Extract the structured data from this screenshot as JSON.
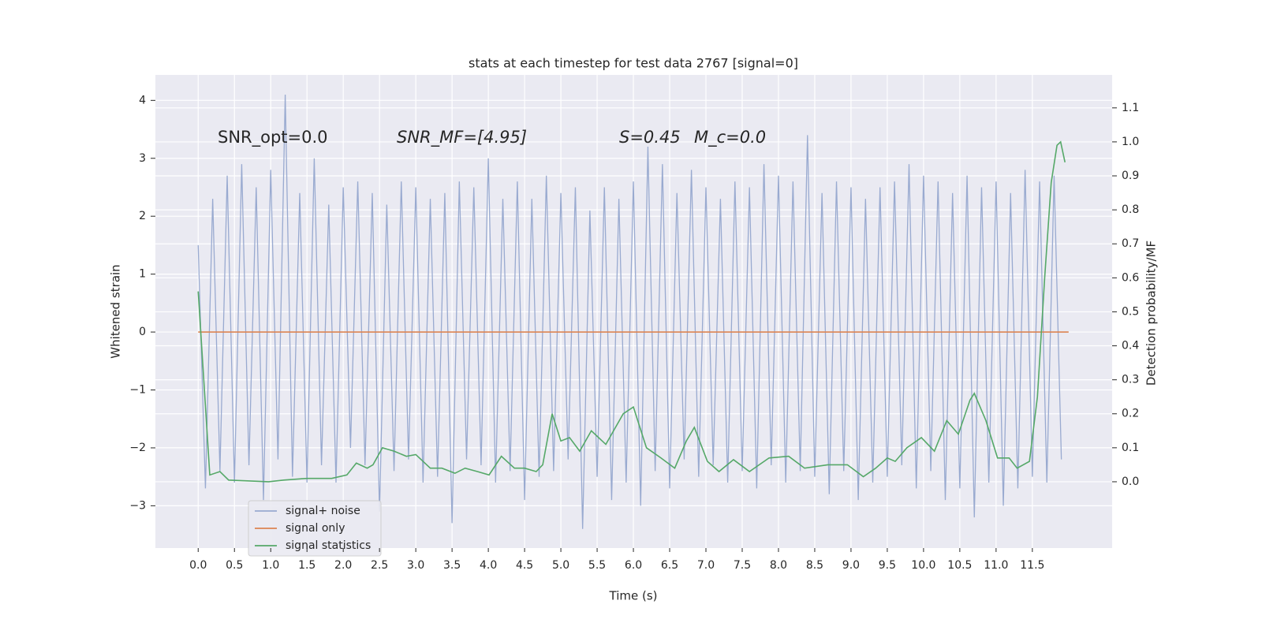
{
  "chart_data": {
    "type": "line",
    "title": "stats at each timestep for test data 2767 [signal=0]",
    "xlabel": "Time (s)",
    "ylabel": "Whitened strain",
    "y2label": "Detection probability/MF",
    "annotations": [
      "SNR_opt=0.0",
      "SNR_MF=[4.95]",
      "S=0.45",
      "M_c=0.0"
    ],
    "xlim": [
      -0.59,
      12.6
    ],
    "ylim": [
      -3.73,
      4.44
    ],
    "y2lim": [
      -0.195,
      1.197
    ],
    "xticks": [
      {
        "value": 0,
        "label": "0.0"
      },
      0.5,
      {
        "value": 1,
        "label": "1.0"
      },
      1.5,
      {
        "value": 2,
        "label": "2.0"
      },
      2.5,
      {
        "value": 3,
        "label": "3.0"
      },
      3.5,
      {
        "value": 4,
        "label": "4.0"
      },
      4.5,
      {
        "value": 5,
        "label": "5.0"
      },
      5.5,
      {
        "value": 6,
        "label": "6.0"
      },
      6.5,
      {
        "value": 7,
        "label": "7.0"
      },
      7.5,
      {
        "value": 8,
        "label": "8.0"
      },
      8.5,
      {
        "value": 9,
        "label": "9.0"
      },
      9.5,
      {
        "value": 10,
        "label": "10.0"
      },
      10.5,
      {
        "value": 11,
        "label": "11.0"
      },
      11.5
    ],
    "yticks": [
      {
        "value": -3,
        "label": "−3"
      },
      {
        "value": -2,
        "label": "−2"
      },
      {
        "value": -1,
        "label": "−1"
      },
      0,
      1,
      2,
      3,
      4
    ],
    "y2ticks": [
      {
        "value": 0,
        "label": "0.0"
      },
      0.1,
      0.2,
      0.3,
      0.4,
      0.5,
      0.6,
      0.7,
      0.8,
      0.9,
      {
        "value": 1,
        "label": "1.0"
      },
      1.1
    ],
    "grid": true,
    "legend_loc": "lower left",
    "series": [
      {
        "name": "signal+ noise",
        "color": "#99aad0",
        "x": [
          0,
          0.1,
          0.2,
          0.3,
          0.4,
          0.5,
          0.6,
          0.7,
          0.8,
          0.9,
          1,
          1.1,
          1.2,
          1.3,
          1.4,
          1.5,
          1.6,
          1.7,
          1.8,
          1.9,
          2,
          2.1,
          2.2,
          2.3,
          2.4,
          2.5,
          2.6,
          2.7,
          2.8,
          2.9,
          3,
          3.1,
          3.2,
          3.3,
          3.4,
          3.5,
          3.6,
          3.7,
          3.8,
          3.9,
          4,
          4.1,
          4.2,
          4.3,
          4.4,
          4.5,
          4.6,
          4.7,
          4.8,
          4.9,
          5,
          5.1,
          5.2,
          5.3,
          5.4,
          5.5,
          5.6,
          5.7,
          5.8,
          5.9,
          6,
          6.1,
          6.2,
          6.3,
          6.4,
          6.5,
          6.6,
          6.7,
          6.8,
          6.9,
          7,
          7.1,
          7.2,
          7.3,
          7.4,
          7.5,
          7.6,
          7.7,
          7.8,
          7.9,
          8,
          8.1,
          8.2,
          8.3,
          8.4,
          8.5,
          8.6,
          8.7,
          8.8,
          8.9,
          9,
          9.1,
          9.2,
          9.3,
          9.4,
          9.5,
          9.6,
          9.7,
          9.8,
          9.9,
          10,
          10.1,
          10.2,
          10.3,
          10.4,
          10.5,
          10.6,
          10.7,
          10.8,
          10.9,
          11,
          11.1,
          11.2,
          11.3,
          11.4,
          11.5,
          11.6,
          11.7,
          11.8,
          11.9
        ],
        "values": [
          1.5,
          -2.7,
          2.3,
          -2.4,
          2.7,
          -2.6,
          2.9,
          -2.3,
          2.5,
          -2.9,
          2.8,
          -2.2,
          4.1,
          -2.5,
          2.4,
          -2.6,
          3.0,
          -2.3,
          2.2,
          -2.6,
          2.5,
          -2.0,
          2.6,
          -2.3,
          2.4,
          -3.1,
          2.2,
          -2.4,
          2.6,
          -2.2,
          2.5,
          -2.6,
          2.3,
          -2.5,
          2.4,
          -3.3,
          2.6,
          -2.2,
          2.5,
          -2.3,
          3.0,
          -2.6,
          2.3,
          -2.4,
          2.6,
          -2.9,
          2.3,
          -2.5,
          2.7,
          -2.4,
          2.4,
          -2.2,
          2.5,
          -3.4,
          2.1,
          -2.5,
          2.5,
          -2.9,
          2.3,
          -2.6,
          2.6,
          -3.0,
          3.2,
          -2.4,
          2.9,
          -2.7,
          2.4,
          -2.2,
          2.8,
          -2.5,
          2.5,
          -2.3,
          2.3,
          -2.6,
          2.6,
          -2.4,
          2.5,
          -2.7,
          2.9,
          -2.3,
          2.7,
          -2.6,
          2.6,
          -2.4,
          3.4,
          -2.5,
          2.4,
          -2.8,
          2.6,
          -2.4,
          2.5,
          -2.9,
          2.3,
          -2.6,
          2.5,
          -2.5,
          2.6,
          -2.3,
          2.9,
          -2.7,
          2.7,
          -2.4,
          2.6,
          -2.9,
          2.4,
          -2.7,
          2.7,
          -3.2,
          2.5,
          -2.6,
          2.6,
          -3.0,
          2.4,
          -2.7,
          2.8,
          -2.5,
          2.6,
          -2.6,
          2.7,
          -2.2
        ]
      },
      {
        "name": "signal only",
        "color": "#dd8452",
        "x": [
          0,
          12
        ],
        "values": [
          0,
          0
        ]
      },
      {
        "name": "signal statistics",
        "color": "#55a868",
        "axis": "y2",
        "x": [
          0,
          0.16,
          0.3,
          0.42,
          0.97,
          1.18,
          1.5,
          1.84,
          2.05,
          2.18,
          2.33,
          2.41,
          2.54,
          2.7,
          2.87,
          3.0,
          3.2,
          3.36,
          3.54,
          3.68,
          3.85,
          4.01,
          4.18,
          4.36,
          4.5,
          4.66,
          4.75,
          4.88,
          5.0,
          5.12,
          5.26,
          5.42,
          5.62,
          5.86,
          6.0,
          6.18,
          6.38,
          6.57,
          6.73,
          6.84,
          7.02,
          7.18,
          7.38,
          7.6,
          7.87,
          8.14,
          8.36,
          8.68,
          8.95,
          9.17,
          9.34,
          9.5,
          9.61,
          9.77,
          9.97,
          10.15,
          10.32,
          10.48,
          10.64,
          10.7,
          10.86,
          11.02,
          11.18,
          11.29,
          11.46,
          11.57,
          11.67,
          11.76,
          11.84,
          11.89,
          11.95
        ],
        "values": [
          0.56,
          0.02,
          0.03,
          0.005,
          0.0,
          0.005,
          0.01,
          0.01,
          0.02,
          0.055,
          0.04,
          0.05,
          0.1,
          0.09,
          0.075,
          0.08,
          0.04,
          0.04,
          0.025,
          0.04,
          0.03,
          0.02,
          0.075,
          0.04,
          0.04,
          0.03,
          0.05,
          0.2,
          0.12,
          0.13,
          0.09,
          0.15,
          0.11,
          0.2,
          0.22,
          0.1,
          0.07,
          0.04,
          0.12,
          0.16,
          0.06,
          0.03,
          0.065,
          0.03,
          0.07,
          0.075,
          0.04,
          0.05,
          0.05,
          0.015,
          0.04,
          0.07,
          0.06,
          0.1,
          0.13,
          0.09,
          0.18,
          0.14,
          0.24,
          0.26,
          0.18,
          0.07,
          0.07,
          0.04,
          0.06,
          0.25,
          0.6,
          0.88,
          0.99,
          1.0,
          0.94
        ]
      }
    ]
  }
}
